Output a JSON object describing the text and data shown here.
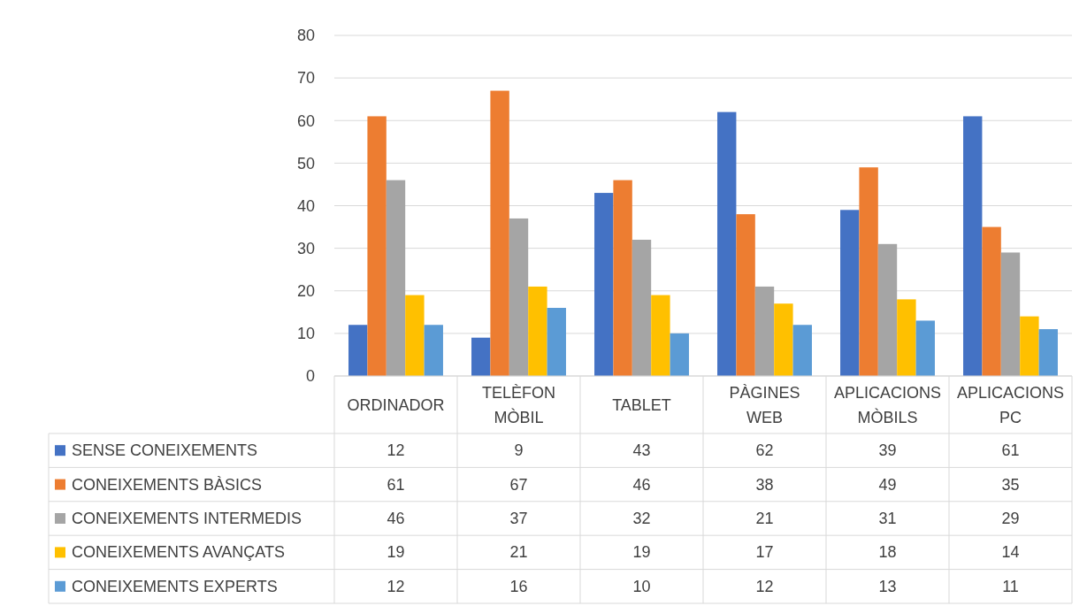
{
  "chart_data": {
    "type": "bar",
    "categories": [
      "ORDINADOR",
      "TELÈFON MÒBIL",
      "TABLET",
      "PÀGINES WEB",
      "APLICACIONS MÒBILS",
      "APLICACIONS PC"
    ],
    "series": [
      {
        "name": "SENSE CONEIXEMENTS",
        "color": "#4472c4",
        "values": [
          12,
          9,
          43,
          62,
          39,
          61
        ]
      },
      {
        "name": "CONEIXEMENTS BÀSICS",
        "color": "#ed7d31",
        "values": [
          61,
          67,
          46,
          38,
          49,
          35
        ]
      },
      {
        "name": "CONEIXEMENTS INTERMEDIS",
        "color": "#a5a5a5",
        "values": [
          46,
          37,
          32,
          21,
          31,
          29
        ]
      },
      {
        "name": "CONEIXEMENTS AVANÇATS",
        "color": "#ffc000",
        "values": [
          19,
          21,
          19,
          17,
          18,
          14
        ]
      },
      {
        "name": "CONEIXEMENTS EXPERTS",
        "color": "#5b9bd5",
        "values": [
          12,
          16,
          10,
          12,
          13,
          11
        ]
      }
    ],
    "ylim": [
      0,
      80
    ],
    "yticks": [
      0,
      10,
      20,
      30,
      40,
      50,
      60,
      70,
      80
    ],
    "grid": "y",
    "legend": "bottom",
    "data_labels": true
  }
}
